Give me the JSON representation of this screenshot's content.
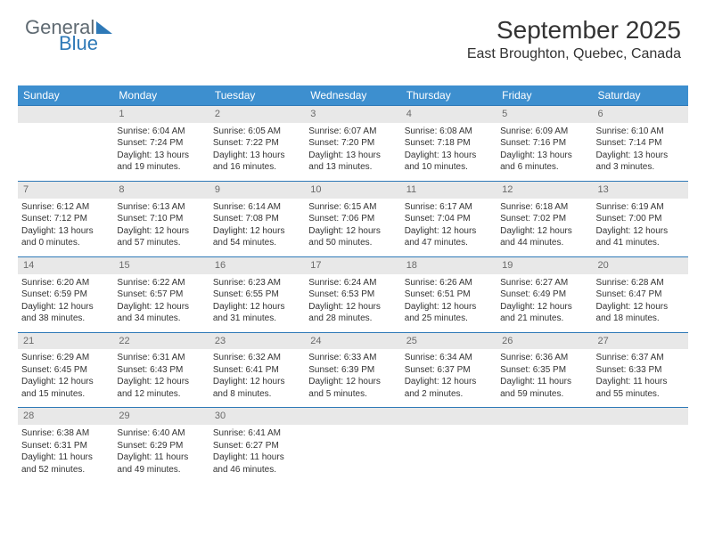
{
  "brand": {
    "part1": "General",
    "part2": "Blue"
  },
  "title": "September 2025",
  "location": "East Broughton, Quebec, Canada",
  "colors": {
    "header_bg": "#3d8fcf",
    "header_text": "#ffffff",
    "daynum_bg": "#e8e8e8",
    "daynum_text": "#6a6a6a",
    "row_border": "#2e79b7",
    "body_text": "#333333",
    "background": "#ffffff"
  },
  "typography": {
    "title_fontsize": 28,
    "location_fontsize": 16,
    "weekday_fontsize": 12,
    "daynum_fontsize": 11,
    "cell_fontsize": 10
  },
  "weekdays": [
    "Sunday",
    "Monday",
    "Tuesday",
    "Wednesday",
    "Thursday",
    "Friday",
    "Saturday"
  ],
  "weeks": [
    [
      null,
      {
        "day": "1",
        "sunrise": "Sunrise: 6:04 AM",
        "sunset": "Sunset: 7:24 PM",
        "dl1": "Daylight: 13 hours",
        "dl2": "and 19 minutes."
      },
      {
        "day": "2",
        "sunrise": "Sunrise: 6:05 AM",
        "sunset": "Sunset: 7:22 PM",
        "dl1": "Daylight: 13 hours",
        "dl2": "and 16 minutes."
      },
      {
        "day": "3",
        "sunrise": "Sunrise: 6:07 AM",
        "sunset": "Sunset: 7:20 PM",
        "dl1": "Daylight: 13 hours",
        "dl2": "and 13 minutes."
      },
      {
        "day": "4",
        "sunrise": "Sunrise: 6:08 AM",
        "sunset": "Sunset: 7:18 PM",
        "dl1": "Daylight: 13 hours",
        "dl2": "and 10 minutes."
      },
      {
        "day": "5",
        "sunrise": "Sunrise: 6:09 AM",
        "sunset": "Sunset: 7:16 PM",
        "dl1": "Daylight: 13 hours",
        "dl2": "and 6 minutes."
      },
      {
        "day": "6",
        "sunrise": "Sunrise: 6:10 AM",
        "sunset": "Sunset: 7:14 PM",
        "dl1": "Daylight: 13 hours",
        "dl2": "and 3 minutes."
      }
    ],
    [
      {
        "day": "7",
        "sunrise": "Sunrise: 6:12 AM",
        "sunset": "Sunset: 7:12 PM",
        "dl1": "Daylight: 13 hours",
        "dl2": "and 0 minutes."
      },
      {
        "day": "8",
        "sunrise": "Sunrise: 6:13 AM",
        "sunset": "Sunset: 7:10 PM",
        "dl1": "Daylight: 12 hours",
        "dl2": "and 57 minutes."
      },
      {
        "day": "9",
        "sunrise": "Sunrise: 6:14 AM",
        "sunset": "Sunset: 7:08 PM",
        "dl1": "Daylight: 12 hours",
        "dl2": "and 54 minutes."
      },
      {
        "day": "10",
        "sunrise": "Sunrise: 6:15 AM",
        "sunset": "Sunset: 7:06 PM",
        "dl1": "Daylight: 12 hours",
        "dl2": "and 50 minutes."
      },
      {
        "day": "11",
        "sunrise": "Sunrise: 6:17 AM",
        "sunset": "Sunset: 7:04 PM",
        "dl1": "Daylight: 12 hours",
        "dl2": "and 47 minutes."
      },
      {
        "day": "12",
        "sunrise": "Sunrise: 6:18 AM",
        "sunset": "Sunset: 7:02 PM",
        "dl1": "Daylight: 12 hours",
        "dl2": "and 44 minutes."
      },
      {
        "day": "13",
        "sunrise": "Sunrise: 6:19 AM",
        "sunset": "Sunset: 7:00 PM",
        "dl1": "Daylight: 12 hours",
        "dl2": "and 41 minutes."
      }
    ],
    [
      {
        "day": "14",
        "sunrise": "Sunrise: 6:20 AM",
        "sunset": "Sunset: 6:59 PM",
        "dl1": "Daylight: 12 hours",
        "dl2": "and 38 minutes."
      },
      {
        "day": "15",
        "sunrise": "Sunrise: 6:22 AM",
        "sunset": "Sunset: 6:57 PM",
        "dl1": "Daylight: 12 hours",
        "dl2": "and 34 minutes."
      },
      {
        "day": "16",
        "sunrise": "Sunrise: 6:23 AM",
        "sunset": "Sunset: 6:55 PM",
        "dl1": "Daylight: 12 hours",
        "dl2": "and 31 minutes."
      },
      {
        "day": "17",
        "sunrise": "Sunrise: 6:24 AM",
        "sunset": "Sunset: 6:53 PM",
        "dl1": "Daylight: 12 hours",
        "dl2": "and 28 minutes."
      },
      {
        "day": "18",
        "sunrise": "Sunrise: 6:26 AM",
        "sunset": "Sunset: 6:51 PM",
        "dl1": "Daylight: 12 hours",
        "dl2": "and 25 minutes."
      },
      {
        "day": "19",
        "sunrise": "Sunrise: 6:27 AM",
        "sunset": "Sunset: 6:49 PM",
        "dl1": "Daylight: 12 hours",
        "dl2": "and 21 minutes."
      },
      {
        "day": "20",
        "sunrise": "Sunrise: 6:28 AM",
        "sunset": "Sunset: 6:47 PM",
        "dl1": "Daylight: 12 hours",
        "dl2": "and 18 minutes."
      }
    ],
    [
      {
        "day": "21",
        "sunrise": "Sunrise: 6:29 AM",
        "sunset": "Sunset: 6:45 PM",
        "dl1": "Daylight: 12 hours",
        "dl2": "and 15 minutes."
      },
      {
        "day": "22",
        "sunrise": "Sunrise: 6:31 AM",
        "sunset": "Sunset: 6:43 PM",
        "dl1": "Daylight: 12 hours",
        "dl2": "and 12 minutes."
      },
      {
        "day": "23",
        "sunrise": "Sunrise: 6:32 AM",
        "sunset": "Sunset: 6:41 PM",
        "dl1": "Daylight: 12 hours",
        "dl2": "and 8 minutes."
      },
      {
        "day": "24",
        "sunrise": "Sunrise: 6:33 AM",
        "sunset": "Sunset: 6:39 PM",
        "dl1": "Daylight: 12 hours",
        "dl2": "and 5 minutes."
      },
      {
        "day": "25",
        "sunrise": "Sunrise: 6:34 AM",
        "sunset": "Sunset: 6:37 PM",
        "dl1": "Daylight: 12 hours",
        "dl2": "and 2 minutes."
      },
      {
        "day": "26",
        "sunrise": "Sunrise: 6:36 AM",
        "sunset": "Sunset: 6:35 PM",
        "dl1": "Daylight: 11 hours",
        "dl2": "and 59 minutes."
      },
      {
        "day": "27",
        "sunrise": "Sunrise: 6:37 AM",
        "sunset": "Sunset: 6:33 PM",
        "dl1": "Daylight: 11 hours",
        "dl2": "and 55 minutes."
      }
    ],
    [
      {
        "day": "28",
        "sunrise": "Sunrise: 6:38 AM",
        "sunset": "Sunset: 6:31 PM",
        "dl1": "Daylight: 11 hours",
        "dl2": "and 52 minutes."
      },
      {
        "day": "29",
        "sunrise": "Sunrise: 6:40 AM",
        "sunset": "Sunset: 6:29 PM",
        "dl1": "Daylight: 11 hours",
        "dl2": "and 49 minutes."
      },
      {
        "day": "30",
        "sunrise": "Sunrise: 6:41 AM",
        "sunset": "Sunset: 6:27 PM",
        "dl1": "Daylight: 11 hours",
        "dl2": "and 46 minutes."
      },
      null,
      null,
      null,
      null
    ]
  ]
}
